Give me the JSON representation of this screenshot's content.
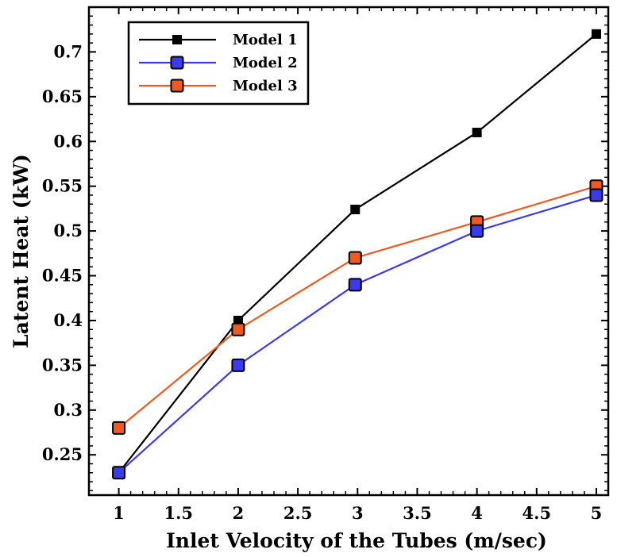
{
  "chart_data": {
    "type": "line",
    "xlabel": "Inlet Velocity of the Tubes (m/sec)",
    "ylabel": "Latent Heat (kW)",
    "xlim": [
      0.75,
      5.1
    ],
    "ylim": [
      0.205,
      0.75
    ],
    "x_ticks": [
      1,
      1.5,
      2,
      2.5,
      3,
      3.5,
      4,
      4.5,
      5
    ],
    "x_tick_labels": [
      "1",
      "1.5",
      "2",
      "2.5",
      "3",
      "3.5",
      "4",
      "4.5",
      "5"
    ],
    "y_ticks": [
      0.25,
      0.3,
      0.35,
      0.4,
      0.45,
      0.5,
      0.55,
      0.6,
      0.65,
      0.7
    ],
    "y_tick_labels": [
      "0.25",
      "0.3",
      "0.35",
      "0.4",
      "0.45",
      "0.5",
      "0.55",
      "0.6",
      "0.65",
      "0.7"
    ],
    "legend_position": "top-left",
    "grid": false,
    "series": [
      {
        "name": "Model 1",
        "color": "#000000",
        "marker": "filled-square",
        "x": [
          1,
          2,
          2.98,
          4,
          5
        ],
        "y": [
          0.23,
          0.4,
          0.524,
          0.61,
          0.72
        ]
      },
      {
        "name": "Model 2",
        "color": "#3a3aef",
        "marker": "outlined-square",
        "x": [
          1,
          2,
          2.98,
          4,
          5
        ],
        "y": [
          0.23,
          0.35,
          0.44,
          0.5,
          0.54
        ]
      },
      {
        "name": "Model 3",
        "color": "#f05a1e",
        "marker": "outlined-square",
        "x": [
          1,
          2,
          2.98,
          4,
          5
        ],
        "y": [
          0.28,
          0.39,
          0.47,
          0.51,
          0.55
        ]
      }
    ]
  }
}
